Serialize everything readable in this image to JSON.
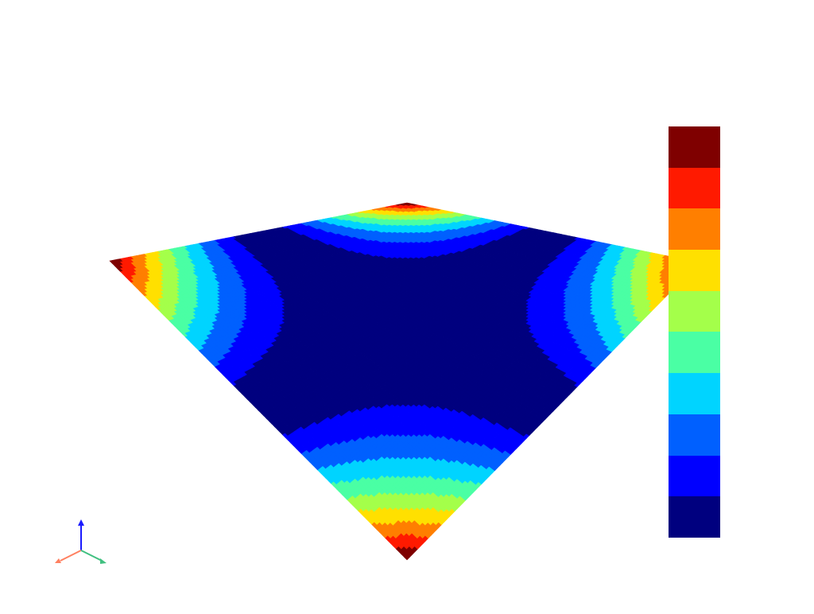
{
  "visualization": {
    "type": "contour-surface",
    "colormap": "jet",
    "levels": 10,
    "background": "#ffffff",
    "colors": [
      "#7f0000",
      "#ff1a00",
      "#ff7f00",
      "#ffe000",
      "#a4ff4a",
      "#4affa4",
      "#00d4ff",
      "#0060ff",
      "#0000ff",
      "#00007f"
    ]
  },
  "axes_triad": {
    "x_color": "#ff8060",
    "y_color": "#40c080",
    "z_color": "#1a1aff"
  }
}
